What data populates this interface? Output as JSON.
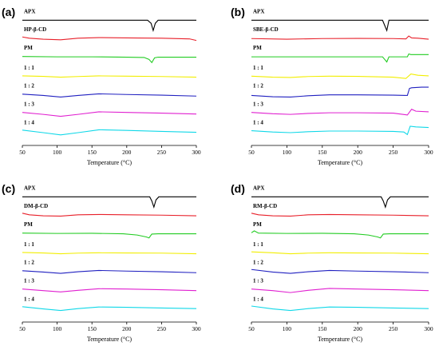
{
  "chart_data": [
    {
      "type": "line",
      "panel_label": "(a)",
      "xlabel": "Temperature (°C)",
      "xlim": [
        50,
        300
      ],
      "x_ticks": [
        50,
        100,
        150,
        200,
        250,
        300
      ],
      "series": [
        {
          "name": "APX",
          "color": "#000000",
          "x": [
            50,
            100,
            150,
            200,
            230,
            235,
            238,
            241,
            245,
            250,
            300
          ],
          "y": [
            0,
            0,
            0,
            0,
            0,
            -0.3,
            -1.0,
            -0.3,
            0,
            0,
            0
          ]
        },
        {
          "name": "HP-β-CD",
          "color": "#e8202a",
          "x": [
            50,
            60,
            80,
            105,
            130,
            160,
            200,
            250,
            290,
            300
          ],
          "y": [
            0.25,
            0.05,
            -0.1,
            -0.2,
            0.05,
            0.15,
            0.1,
            0.05,
            -0.05,
            -0.3
          ]
        },
        {
          "name": "PM",
          "color": "#22cc22",
          "x": [
            50,
            100,
            150,
            200,
            225,
            232,
            236,
            240,
            245,
            300
          ],
          "y": [
            0.05,
            0,
            0,
            -0.05,
            -0.1,
            -0.4,
            -0.9,
            -0.15,
            -0.05,
            -0.05
          ]
        },
        {
          "name": "1 : 1",
          "color": "#f2ee00",
          "x": [
            50,
            80,
            105,
            130,
            160,
            200,
            250,
            300
          ],
          "y": [
            0.1,
            0.02,
            -0.1,
            0,
            0.1,
            0.05,
            0,
            -0.1
          ]
        },
        {
          "name": "1 : 2",
          "color": "#2020c0",
          "x": [
            50,
            80,
            105,
            130,
            160,
            200,
            250,
            300
          ],
          "y": [
            0.1,
            -0.1,
            -0.35,
            -0.1,
            0.15,
            0.05,
            -0.05,
            -0.2
          ]
        },
        {
          "name": "1 : 3",
          "color": "#e020d0",
          "x": [
            50,
            80,
            105,
            130,
            160,
            200,
            250,
            300
          ],
          "y": [
            0.1,
            -0.2,
            -0.5,
            -0.2,
            0.2,
            0.1,
            0,
            -0.15
          ]
        },
        {
          "name": "1 : 4",
          "color": "#10d8e8",
          "x": [
            50,
            80,
            105,
            130,
            160,
            200,
            250,
            300
          ],
          "y": [
            0.2,
            -0.2,
            -0.55,
            -0.2,
            0.25,
            0.15,
            0,
            -0.15
          ]
        }
      ]
    },
    {
      "type": "line",
      "panel_label": "(b)",
      "xlabel": "Temperature (°C)",
      "xlim": [
        50,
        300
      ],
      "x_ticks": [
        50,
        100,
        150,
        200,
        250,
        300
      ],
      "series": [
        {
          "name": "APX",
          "color": "#000000",
          "x": [
            50,
            100,
            150,
            200,
            235,
            238,
            241,
            244,
            250,
            300
          ],
          "y": [
            0,
            0,
            0,
            0,
            0,
            -0.5,
            -1.0,
            0,
            0,
            0
          ]
        },
        {
          "name": "SBE-β-CD",
          "color": "#e8202a",
          "x": [
            50,
            100,
            150,
            200,
            250,
            268,
            272,
            276,
            285,
            300
          ],
          "y": [
            0,
            -0.1,
            0,
            0.02,
            0,
            -0.05,
            0.4,
            0.1,
            0.05,
            -0.1
          ]
        },
        {
          "name": "PM",
          "color": "#22cc22",
          "x": [
            50,
            100,
            150,
            200,
            235,
            238,
            241,
            244,
            250,
            270,
            272,
            275,
            300
          ],
          "y": [
            0,
            0,
            0,
            0,
            0,
            -0.4,
            -0.8,
            0,
            0,
            0,
            0.45,
            0.35,
            0.35
          ]
        },
        {
          "name": "1 : 1",
          "color": "#f2ee00",
          "x": [
            50,
            80,
            105,
            130,
            160,
            200,
            250,
            268,
            275,
            285,
            300
          ],
          "y": [
            0.05,
            -0.1,
            -0.15,
            0,
            0.05,
            0.02,
            -0.1,
            -0.3,
            0.4,
            0.2,
            0.1
          ]
        },
        {
          "name": "1 : 2",
          "color": "#2020c0",
          "x": [
            50,
            80,
            105,
            130,
            160,
            200,
            250,
            270,
            273,
            276,
            290,
            300
          ],
          "y": [
            -0.1,
            -0.3,
            -0.35,
            -0.15,
            0,
            0,
            -0.05,
            -0.1,
            1.0,
            1.1,
            1.2,
            1.2
          ]
        },
        {
          "name": "1 : 3",
          "color": "#e020d0",
          "x": [
            50,
            80,
            105,
            130,
            160,
            200,
            250,
            270,
            276,
            282,
            300
          ],
          "y": [
            0.1,
            -0.1,
            -0.2,
            -0.05,
            0.05,
            0.05,
            0,
            -0.3,
            0.6,
            0.3,
            0.2
          ]
        },
        {
          "name": "1 : 4",
          "color": "#10d8e8",
          "x": [
            50,
            80,
            105,
            130,
            160,
            200,
            250,
            265,
            270,
            274,
            282,
            300
          ],
          "y": [
            0.1,
            -0.1,
            -0.2,
            -0.05,
            0.05,
            0.05,
            0,
            -0.1,
            -0.5,
            0.8,
            0.7,
            0.6
          ]
        }
      ]
    },
    {
      "type": "line",
      "panel_label": "(c)",
      "xlabel": "Temperature (°C)",
      "xlim": [
        50,
        300
      ],
      "x_ticks": [
        50,
        100,
        150,
        200,
        250,
        300
      ],
      "series": [
        {
          "name": "APX",
          "color": "#000000",
          "x": [
            50,
            100,
            150,
            200,
            233,
            236,
            239,
            242,
            246,
            250,
            300
          ],
          "y": [
            0,
            0,
            0,
            0,
            0,
            -0.4,
            -1.0,
            -0.3,
            0,
            0,
            0
          ]
        },
        {
          "name": "DM-β-CD",
          "color": "#e8202a",
          "x": [
            50,
            60,
            80,
            105,
            130,
            160,
            200,
            250,
            300
          ],
          "y": [
            0.3,
            0.05,
            -0.1,
            -0.15,
            0.05,
            0.1,
            0.05,
            0,
            -0.1
          ]
        },
        {
          "name": "PM",
          "color": "#22cc22",
          "x": [
            50,
            100,
            150,
            195,
            215,
            228,
            232,
            236,
            245,
            300
          ],
          "y": [
            0.05,
            0,
            0.02,
            -0.05,
            -0.25,
            -0.55,
            -0.7,
            -0.1,
            -0.05,
            -0.05
          ]
        },
        {
          "name": "1 : 1",
          "color": "#f2ee00",
          "x": [
            50,
            80,
            105,
            130,
            160,
            200,
            250,
            300
          ],
          "y": [
            0.1,
            0.02,
            -0.1,
            0,
            0.05,
            0.03,
            0,
            -0.1
          ]
        },
        {
          "name": "1 : 2",
          "color": "#2020c0",
          "x": [
            50,
            80,
            105,
            130,
            160,
            200,
            250,
            300
          ],
          "y": [
            0.1,
            -0.1,
            -0.3,
            -0.05,
            0.15,
            0.05,
            -0.05,
            -0.2
          ]
        },
        {
          "name": "1 : 3",
          "color": "#e020d0",
          "x": [
            50,
            80,
            105,
            130,
            160,
            200,
            250,
            300
          ],
          "y": [
            0.1,
            -0.15,
            -0.35,
            -0.1,
            0.15,
            0.1,
            0,
            -0.15
          ]
        },
        {
          "name": "1 : 4",
          "color": "#10d8e8",
          "x": [
            50,
            80,
            105,
            130,
            160,
            200,
            250,
            300
          ],
          "y": [
            0.2,
            -0.15,
            -0.4,
            -0.1,
            0.15,
            0.1,
            0,
            -0.1
          ]
        }
      ]
    },
    {
      "type": "line",
      "panel_label": "(d)",
      "xlabel": "Temperature (°C)",
      "xlim": [
        50,
        300
      ],
      "x_ticks": [
        50,
        100,
        150,
        200,
        250,
        300
      ],
      "series": [
        {
          "name": "APX",
          "color": "#000000",
          "x": [
            50,
            100,
            150,
            200,
            233,
            236,
            239,
            242,
            246,
            250,
            300
          ],
          "y": [
            0,
            0,
            0,
            0,
            0,
            -0.4,
            -1.0,
            -0.3,
            0,
            0,
            0
          ]
        },
        {
          "name": "RM-β-CD",
          "color": "#e8202a",
          "x": [
            50,
            60,
            80,
            105,
            130,
            160,
            200,
            250,
            300
          ],
          "y": [
            0.3,
            0.05,
            -0.1,
            -0.15,
            0.05,
            0.1,
            0.05,
            0,
            -0.1
          ]
        },
        {
          "name": "PM",
          "color": "#22cc22",
          "x": [
            50,
            54,
            60,
            100,
            150,
            195,
            215,
            228,
            232,
            236,
            245,
            300
          ],
          "y": [
            0.1,
            0.4,
            0.05,
            0,
            0.02,
            -0.05,
            -0.25,
            -0.55,
            -0.7,
            -0.1,
            -0.05,
            -0.05
          ]
        },
        {
          "name": "1 : 1",
          "color": "#f2ee00",
          "x": [
            50,
            80,
            105,
            130,
            160,
            200,
            250,
            300
          ],
          "y": [
            0.2,
            0.05,
            -0.1,
            0,
            0.05,
            0.03,
            0,
            -0.1
          ]
        },
        {
          "name": "1 : 2",
          "color": "#2020c0",
          "x": [
            50,
            80,
            105,
            130,
            160,
            200,
            250,
            300
          ],
          "y": [
            0.3,
            -0.1,
            -0.3,
            -0.05,
            0.15,
            0.05,
            -0.05,
            -0.2
          ]
        },
        {
          "name": "1 : 3",
          "color": "#e020d0",
          "x": [
            50,
            80,
            105,
            130,
            160,
            200,
            250,
            300
          ],
          "y": [
            0.1,
            -0.15,
            -0.45,
            -0.1,
            0.2,
            0.1,
            0,
            -0.15
          ]
        },
        {
          "name": "1 : 4",
          "color": "#10d8e8",
          "x": [
            50,
            80,
            105,
            130,
            160,
            200,
            250,
            300
          ],
          "y": [
            0.3,
            -0.15,
            -0.4,
            -0.1,
            0.15,
            0.1,
            0,
            -0.1
          ]
        }
      ]
    }
  ]
}
